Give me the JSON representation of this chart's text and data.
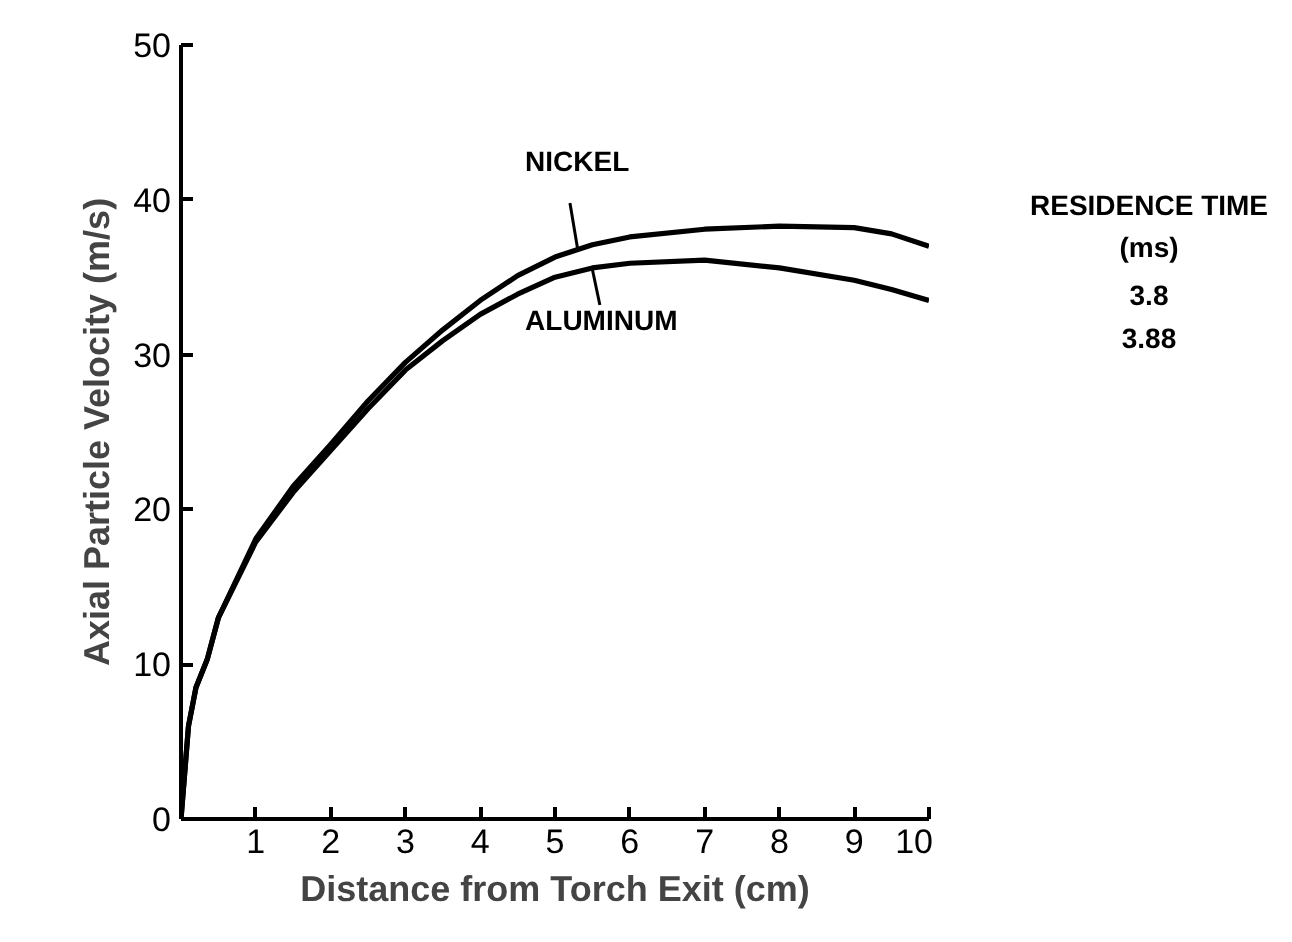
{
  "chart_data": {
    "type": "line",
    "xlabel": "Distance from Torch Exit (cm)",
    "ylabel": "Axial Particle Velocity (m/s)",
    "series": [
      {
        "name": "NICKEL",
        "color": "#000000",
        "x": [
          0,
          0.1,
          0.2,
          0.35,
          0.5,
          1,
          1.5,
          2,
          2.5,
          3,
          3.5,
          4,
          4.5,
          5,
          5.5,
          6,
          7,
          8,
          9,
          9.5,
          10
        ],
        "values": [
          0,
          6,
          8.5,
          10.3,
          13,
          18.1,
          21.5,
          24.2,
          27,
          29.5,
          31.6,
          33.5,
          35.1,
          36.3,
          37.1,
          37.6,
          38.1,
          38.3,
          38.2,
          37.8,
          37
        ]
      },
      {
        "name": "ALUMINUM",
        "color": "#000000",
        "x": [
          0,
          0.1,
          0.2,
          0.35,
          0.5,
          1,
          1.5,
          2,
          2.5,
          3,
          3.5,
          4,
          4.5,
          5,
          5.5,
          6,
          7,
          8,
          9,
          9.5,
          10
        ],
        "values": [
          0,
          6,
          8.5,
          10.3,
          13,
          17.9,
          21.1,
          23.8,
          26.5,
          29,
          30.9,
          32.6,
          33.9,
          35,
          35.6,
          35.9,
          36.1,
          35.6,
          34.8,
          34.2,
          33.5
        ]
      }
    ],
    "xlim": [
      0,
      10
    ],
    "ylim": [
      0,
      50
    ],
    "xticks": [
      1,
      2,
      3,
      4,
      5,
      6,
      7,
      8,
      9,
      10
    ],
    "yticks": [
      0,
      10,
      20,
      30,
      40,
      50
    ],
    "grid": false,
    "legend": "top",
    "marker": "none",
    "line_style": "solid",
    "annotations": [
      "RESIDENCE TIME",
      "(ms)",
      "3.8",
      "3.88"
    ]
  }
}
